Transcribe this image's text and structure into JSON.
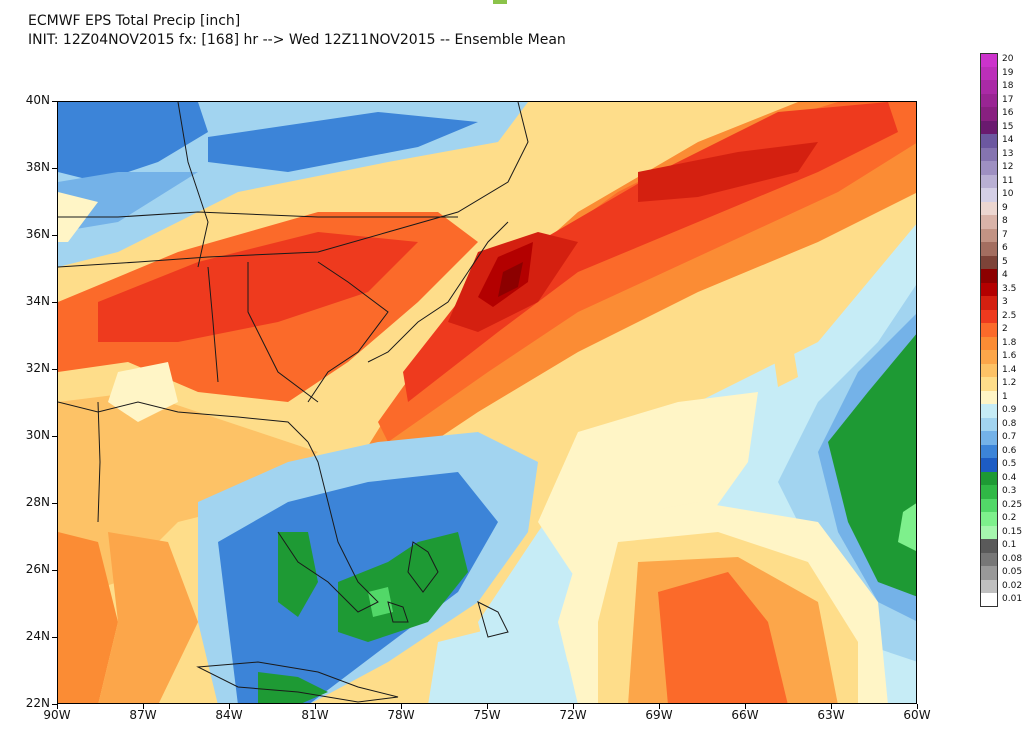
{
  "title": {
    "line1": "ECMWF EPS Total Precip [inch]",
    "line2": "INIT: 12Z04NOV2015 fx: [168] hr --> Wed 12Z11NOV2015 -- Ensemble Mean"
  },
  "axes": {
    "lat_labels": [
      "40N",
      "38N",
      "36N",
      "34N",
      "32N",
      "30N",
      "28N",
      "26N",
      "24N",
      "22N"
    ],
    "lon_labels": [
      "90W",
      "87W",
      "84W",
      "81W",
      "78W",
      "75W",
      "72W",
      "69W",
      "66W",
      "63W",
      "60W"
    ]
  },
  "legend": [
    {
      "label": "20",
      "color": "#cc33cc"
    },
    {
      "label": "19",
      "color": "#bb2fb9"
    },
    {
      "label": "18",
      "color": "#aa2aa6"
    },
    {
      "label": "17",
      "color": "#992593"
    },
    {
      "label": "16",
      "color": "#882080"
    },
    {
      "label": "15",
      "color": "#6a1a6f"
    },
    {
      "label": "14",
      "color": "#6c58a0"
    },
    {
      "label": "13",
      "color": "#8574b0"
    },
    {
      "label": "12",
      "color": "#9e90c2"
    },
    {
      "label": "11",
      "color": "#b9b0d4"
    },
    {
      "label": "10",
      "color": "#d4cfe6"
    },
    {
      "label": "9",
      "color": "#ecd6d0"
    },
    {
      "label": "8",
      "color": "#d9b3a8"
    },
    {
      "label": "7",
      "color": "#c29384"
    },
    {
      "label": "6",
      "color": "#a36e60"
    },
    {
      "label": "5",
      "color": "#7d4338"
    },
    {
      "label": "4",
      "color": "#8c0000"
    },
    {
      "label": "3.5",
      "color": "#b30000"
    },
    {
      "label": "3",
      "color": "#d42010"
    },
    {
      "label": "2.5",
      "color": "#ee3a1e"
    },
    {
      "label": "2",
      "color": "#fb6a2a"
    },
    {
      "label": "1.8",
      "color": "#fb8c34"
    },
    {
      "label": "1.6",
      "color": "#fca64a"
    },
    {
      "label": "1.4",
      "color": "#fdc266"
    },
    {
      "label": "1.2",
      "color": "#fedd8a"
    },
    {
      "label": "1",
      "color": "#fff5c6"
    },
    {
      "label": "0.9",
      "color": "#c6ecf6"
    },
    {
      "label": "0.8",
      "color": "#a2d4f0"
    },
    {
      "label": "0.7",
      "color": "#74b2e8"
    },
    {
      "label": "0.6",
      "color": "#3c84d8"
    },
    {
      "label": "0.5",
      "color": "#1d5cc4"
    },
    {
      "label": "0.4",
      "color": "#1e9a34"
    },
    {
      "label": "0.3",
      "color": "#30b846"
    },
    {
      "label": "0.25",
      "color": "#52d868"
    },
    {
      "label": "0.2",
      "color": "#7ef08c"
    },
    {
      "label": "0.15",
      "color": "#a6f6ae"
    },
    {
      "label": "0.1",
      "color": "#5a5a5a"
    },
    {
      "label": "0.08",
      "color": "#777777"
    },
    {
      "label": "0.05",
      "color": "#999999"
    },
    {
      "label": "0.02",
      "color": "#c0c0c0"
    },
    {
      "label": "0.01",
      "color": "#ffffff"
    }
  ],
  "map_colors": {
    "c4": "#8c0000",
    "c35": "#b30000",
    "c3": "#d42010",
    "c25": "#ee3a1e",
    "c2": "#fb6a2a",
    "c18": "#fb8c34",
    "c16": "#fca64a",
    "c14": "#fdc266",
    "c12": "#fedd8a",
    "c1": "#fff5c6",
    "c09": "#c6ecf6",
    "c08": "#a2d4f0",
    "c07": "#74b2e8",
    "c06": "#3c84d8",
    "c05": "#1d5cc4",
    "c04": "#1e9a34",
    "c03": "#30b846",
    "c025": "#52d868",
    "c02": "#7ef08c"
  }
}
